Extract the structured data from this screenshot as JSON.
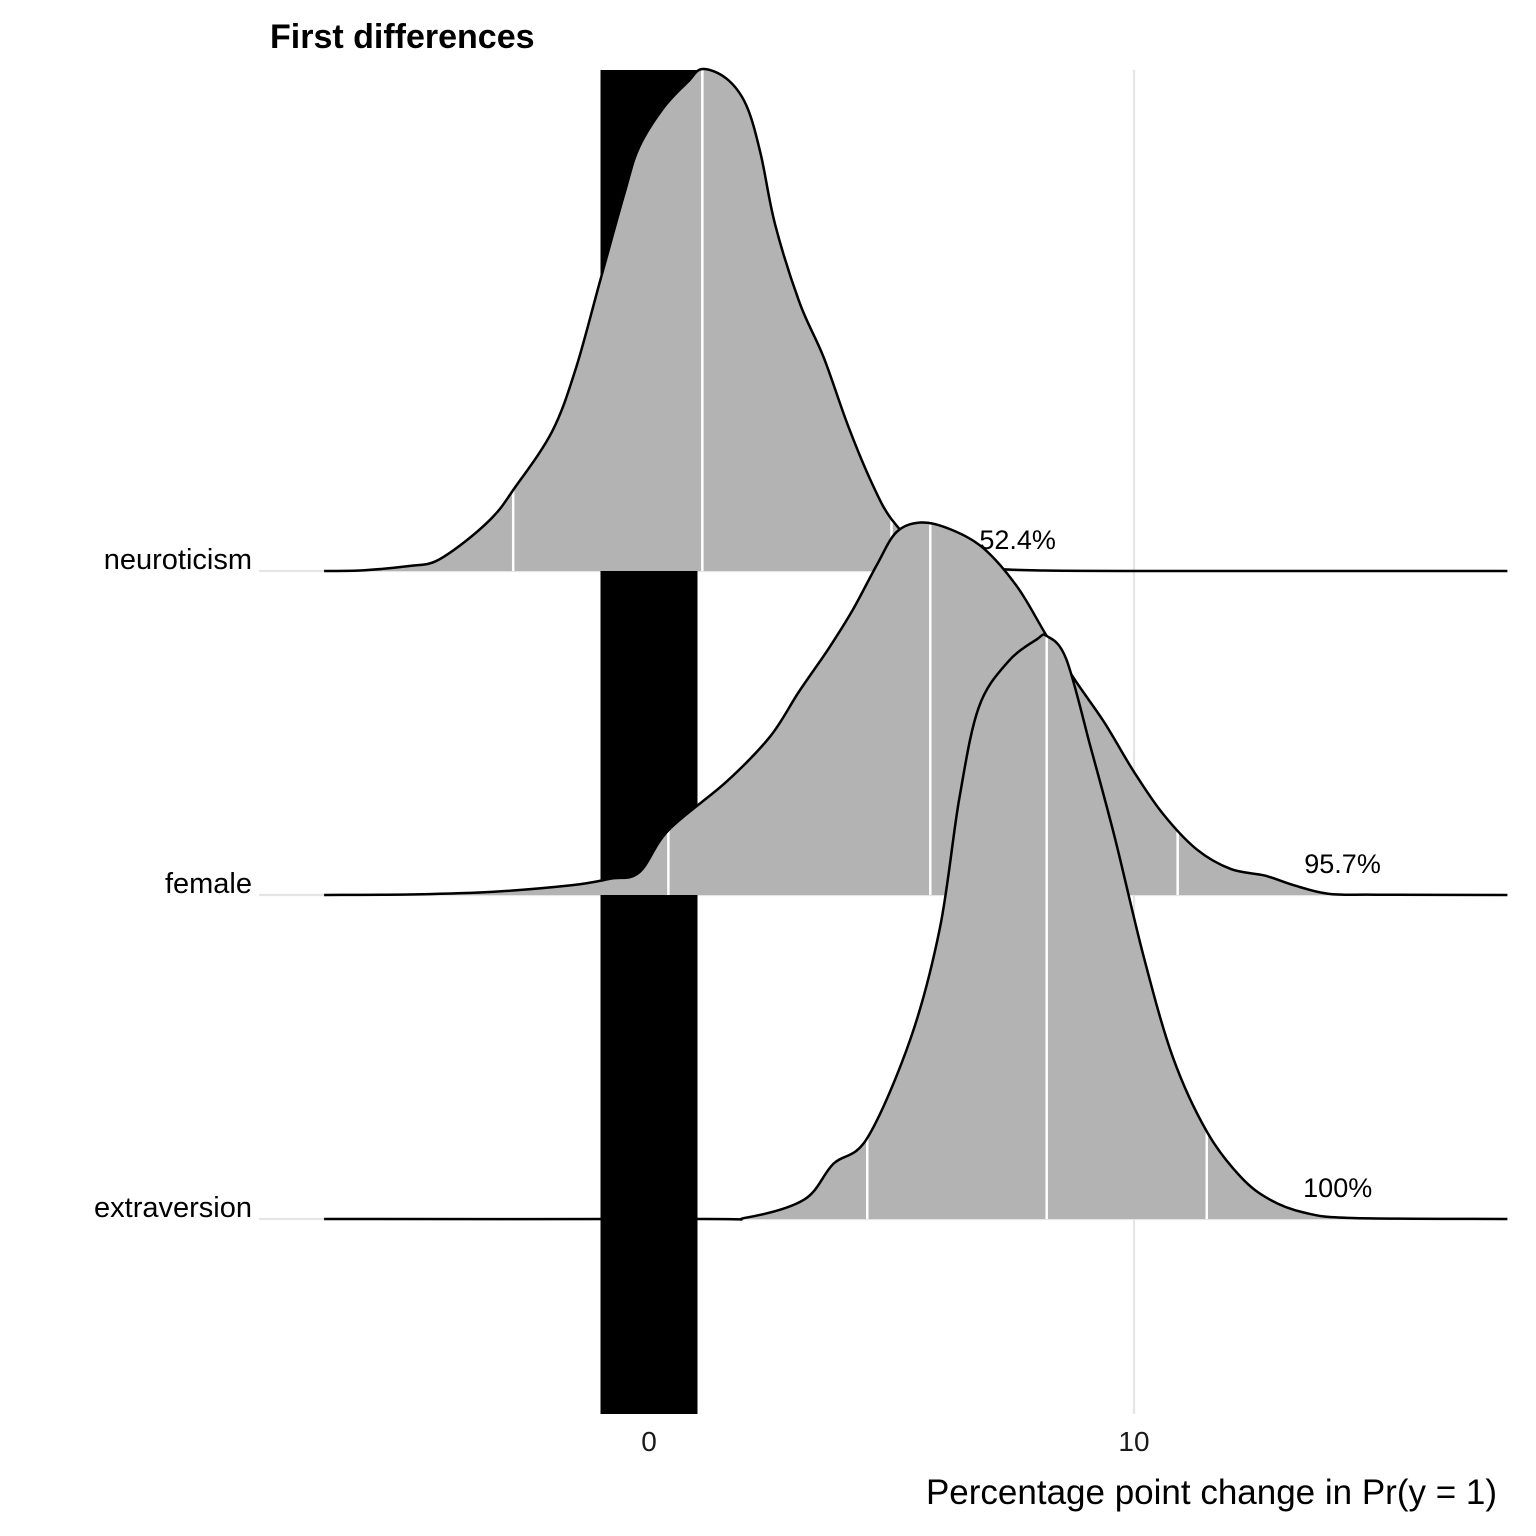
{
  "chart_data": {
    "type": "density-ridgeline",
    "title": "First differences",
    "xlabel": "Percentage point change in Pr(y = 1)",
    "ylabel": "",
    "xlim": [
      -6.7,
      17.7
    ],
    "x_ticks": [
      0,
      10
    ],
    "x_tick_labels": [
      "0",
      "10"
    ],
    "rope": [
      -1,
      1
    ],
    "grid": "vertical major + horizontal baselines",
    "colors": {
      "density_fill": "#b3b3b3",
      "outline": "#000000",
      "rope": "#000000",
      "grid": "#e5e5e5",
      "interval_lines": "#ffffff"
    },
    "series": [
      {
        "name": "neuroticism",
        "label": "52.4%",
        "label_x": 7.6,
        "peak_height": 1.55,
        "interval_lines": [
          -2.8,
          1.1,
          5.0
        ],
        "density": [
          [
            -6.7,
            0
          ],
          [
            -5.9,
            0.002
          ],
          [
            -4.9,
            0.016
          ],
          [
            -4.4,
            0.03
          ],
          [
            -3.8,
            0.09
          ],
          [
            -3.2,
            0.17
          ],
          [
            -2.8,
            0.25
          ],
          [
            -2.0,
            0.43
          ],
          [
            -1.5,
            0.63
          ],
          [
            -1.0,
            0.9
          ],
          [
            -0.5,
            1.17
          ],
          [
            -0.2,
            1.31
          ],
          [
            0.3,
            1.43
          ],
          [
            0.8,
            1.51
          ],
          [
            1.1,
            1.55
          ],
          [
            1.6,
            1.52
          ],
          [
            2.0,
            1.44
          ],
          [
            2.3,
            1.29
          ],
          [
            2.6,
            1.07
          ],
          [
            3.1,
            0.83
          ],
          [
            3.6,
            0.66
          ],
          [
            4.1,
            0.45
          ],
          [
            4.6,
            0.27
          ],
          [
            5.0,
            0.16
          ],
          [
            5.6,
            0.07
          ],
          [
            6.2,
            0.025
          ],
          [
            7.0,
            0.008
          ],
          [
            8.0,
            0.002
          ],
          [
            10.0,
            0
          ],
          [
            17.7,
            0
          ]
        ]
      },
      {
        "name": "female",
        "label": "95.7%",
        "label_x": 14.3,
        "peak_height": 1.15,
        "interval_lines": [
          0.4,
          5.8,
          10.9
        ],
        "density": [
          [
            -6.7,
            0
          ],
          [
            -4.8,
            0.002
          ],
          [
            -3.2,
            0.01
          ],
          [
            -1.6,
            0.03
          ],
          [
            -0.8,
            0.05
          ],
          [
            -0.2,
            0.07
          ],
          [
            0.4,
            0.2
          ],
          [
            1.6,
            0.35
          ],
          [
            2.5,
            0.49
          ],
          [
            3.1,
            0.63
          ],
          [
            3.7,
            0.76
          ],
          [
            4.2,
            0.88
          ],
          [
            4.7,
            1.02
          ],
          [
            5.1,
            1.12
          ],
          [
            5.6,
            1.15
          ],
          [
            6.2,
            1.13
          ],
          [
            6.9,
            1.07
          ],
          [
            7.6,
            0.95
          ],
          [
            8.2,
            0.8
          ],
          [
            8.8,
            0.66
          ],
          [
            9.4,
            0.53
          ],
          [
            10.0,
            0.38
          ],
          [
            10.6,
            0.25
          ],
          [
            11.3,
            0.14
          ],
          [
            12.0,
            0.08
          ],
          [
            12.7,
            0.06
          ],
          [
            13.3,
            0.03
          ],
          [
            14.0,
            0.004
          ],
          [
            15.0,
            0.001
          ],
          [
            17.7,
            0
          ]
        ]
      },
      {
        "name": "extraversion",
        "label": "100%",
        "label_x": 14.2,
        "peak_height": 1.8,
        "interval_lines": [
          4.5,
          8.2,
          11.5
        ],
        "density": [
          [
            -6.7,
            0
          ],
          [
            1.0,
            0
          ],
          [
            2.0,
            0.004
          ],
          [
            3.2,
            0.06
          ],
          [
            3.8,
            0.17
          ],
          [
            4.5,
            0.25
          ],
          [
            5.4,
            0.56
          ],
          [
            6.0,
            0.9
          ],
          [
            6.4,
            1.3
          ],
          [
            6.8,
            1.58
          ],
          [
            7.4,
            1.72
          ],
          [
            8.0,
            1.79
          ],
          [
            8.2,
            1.8
          ],
          [
            8.6,
            1.73
          ],
          [
            9.1,
            1.46
          ],
          [
            9.6,
            1.18
          ],
          [
            10.2,
            0.81
          ],
          [
            10.8,
            0.5
          ],
          [
            11.5,
            0.27
          ],
          [
            12.2,
            0.13
          ],
          [
            12.8,
            0.06
          ],
          [
            13.5,
            0.02
          ],
          [
            14.5,
            0.003
          ],
          [
            17.7,
            0
          ]
        ]
      }
    ]
  }
}
